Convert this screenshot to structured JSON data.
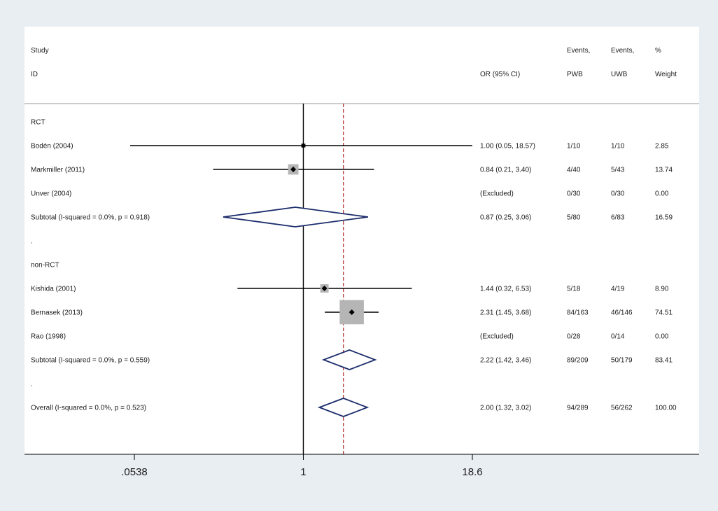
{
  "chart_data": {
    "type": "forest",
    "scale": "log",
    "header": {
      "study_line1": "Study",
      "study_line2": "ID",
      "or_label": "OR (95% CI)",
      "events_pwb_line1": "Events,",
      "events_pwb_line2": "PWB",
      "events_uwb_line1": "Events,",
      "events_uwb_line2": "UWB",
      "weight_line1": "%",
      "weight_line2": "Weight"
    },
    "x_ticks": [
      {
        "value": 0.0538,
        "label": ".0538"
      },
      {
        "value": 1,
        "label": "1"
      },
      {
        "value": 18.6,
        "label": "18.6"
      }
    ],
    "xlim": [
      0.0538,
      18.6
    ],
    "null_line": 1,
    "overall_or": 2.0,
    "colors": {
      "background": "#e9eef3",
      "panel": "#ffffff",
      "diamond": "#1b2d6b",
      "box": "#b5b5b5",
      "overall_line": "#b22222"
    },
    "rows": [
      {
        "kind": "group",
        "label": "RCT"
      },
      {
        "kind": "study",
        "label": "Bodén (2004)",
        "or": 1.0,
        "lo": 0.05,
        "hi": 18.57,
        "or_text": "1.00 (0.05, 18.57)",
        "pwb": "1/10",
        "uwb": "1/10",
        "weight": 2.85,
        "weight_text": "2.85"
      },
      {
        "kind": "study",
        "label": "Markmiller (2011)",
        "or": 0.84,
        "lo": 0.21,
        "hi": 3.4,
        "or_text": "0.84 (0.21, 3.40)",
        "pwb": "4/40",
        "uwb": "5/43",
        "weight": 13.74,
        "weight_text": "13.74"
      },
      {
        "kind": "excluded",
        "label": "Unver (2004)",
        "or_text": "(Excluded)",
        "pwb": "0/30",
        "uwb": "0/30",
        "weight_text": "0.00"
      },
      {
        "kind": "subtotal",
        "label": "Subtotal  (I-squared = 0.0%, p = 0.918)",
        "or": 0.87,
        "lo": 0.25,
        "hi": 3.06,
        "or_text": "0.87 (0.25, 3.06)",
        "pwb": "5/80",
        "uwb": "6/83",
        "weight_text": "16.59"
      },
      {
        "kind": "spacer",
        "label": "."
      },
      {
        "kind": "group",
        "label": "non-RCT"
      },
      {
        "kind": "study",
        "label": "Kishida (2001)",
        "or": 1.44,
        "lo": 0.32,
        "hi": 6.53,
        "or_text": "1.44 (0.32, 6.53)",
        "pwb": "5/18",
        "uwb": "4/19",
        "weight": 8.9,
        "weight_text": "8.90"
      },
      {
        "kind": "study",
        "label": "Bernasek (2013)",
        "or": 2.31,
        "lo": 1.45,
        "hi": 3.68,
        "or_text": "2.31 (1.45, 3.68)",
        "pwb": "84/163",
        "uwb": "46/146",
        "weight": 74.51,
        "weight_text": "74.51"
      },
      {
        "kind": "excluded",
        "label": "Rao (1998)",
        "or_text": "(Excluded)",
        "pwb": "0/28",
        "uwb": "0/14",
        "weight_text": "0.00"
      },
      {
        "kind": "subtotal",
        "label": "Subtotal  (I-squared = 0.0%, p = 0.559)",
        "or": 2.22,
        "lo": 1.42,
        "hi": 3.46,
        "or_text": "2.22 (1.42, 3.46)",
        "pwb": "89/209",
        "uwb": "50/179",
        "weight_text": "83.41"
      },
      {
        "kind": "spacer",
        "label": "."
      },
      {
        "kind": "overall",
        "label": "Overall  (I-squared = 0.0%, p = 0.523)",
        "or": 2.0,
        "lo": 1.32,
        "hi": 3.02,
        "or_text": "2.00 (1.32, 3.02)",
        "pwb": "94/289",
        "uwb": "56/262",
        "weight_text": "100.00"
      }
    ]
  }
}
